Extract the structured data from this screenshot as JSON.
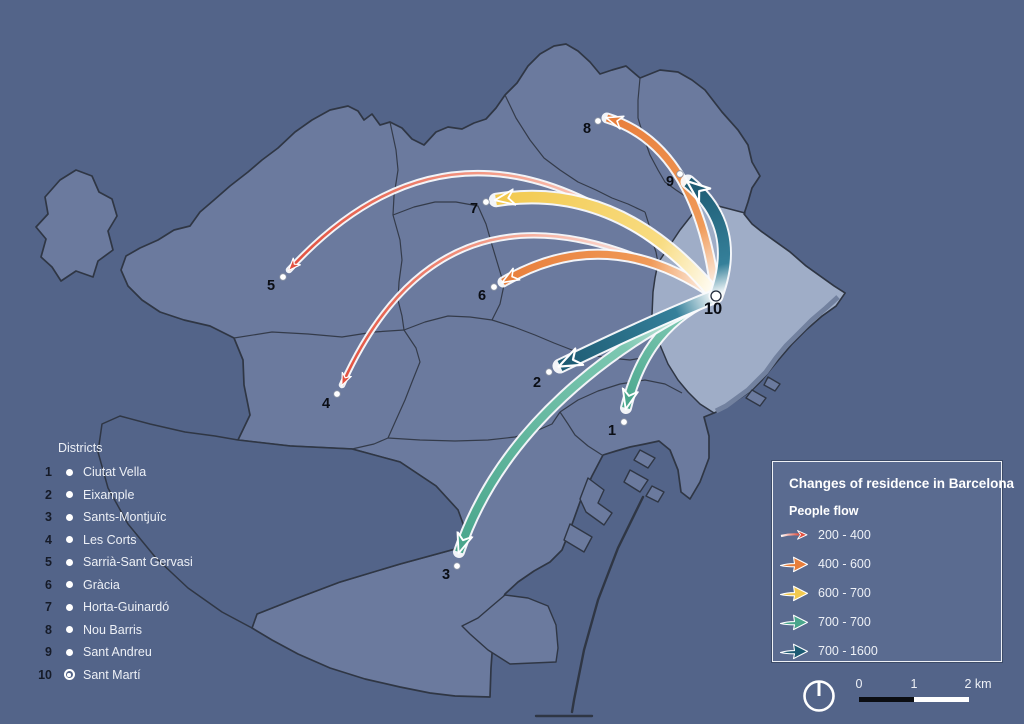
{
  "map": {
    "origin_district": "10",
    "flows": [
      {
        "to": "5",
        "range": "200 - 400"
      },
      {
        "to": "4",
        "range": "200 - 400"
      },
      {
        "to": "8",
        "range": "400 - 600"
      },
      {
        "to": "6",
        "range": "400 - 600"
      },
      {
        "to": "7",
        "range": "600 - 700"
      },
      {
        "to": "1",
        "range": "700 - 700"
      },
      {
        "to": "3",
        "range": "700 - 700"
      },
      {
        "to": "2",
        "range": "700 - 1600"
      },
      {
        "to": "9",
        "range": "700 - 1600"
      }
    ]
  },
  "districts_panel": {
    "title": "Districts",
    "items": [
      {
        "num": "1",
        "name": "Ciutat Vella",
        "marker": "dot"
      },
      {
        "num": "2",
        "name": "Eixample",
        "marker": "dot"
      },
      {
        "num": "3",
        "name": "Sants-Montjuïc",
        "marker": "dot"
      },
      {
        "num": "4",
        "name": "Les Corts",
        "marker": "dot"
      },
      {
        "num": "5",
        "name": "Sarrià-Sant Gervasi",
        "marker": "dot"
      },
      {
        "num": "6",
        "name": "Gràcia",
        "marker": "dot"
      },
      {
        "num": "7",
        "name": "Horta-Guinardó",
        "marker": "dot"
      },
      {
        "num": "8",
        "name": "Nou Barris",
        "marker": "dot"
      },
      {
        "num": "9",
        "name": "Sant Andreu",
        "marker": "dot"
      },
      {
        "num": "10",
        "name": "Sant Martí",
        "marker": "ring-dot"
      }
    ]
  },
  "legend": {
    "title": "Changes of residence in Barcelona",
    "subtitle": "People flow",
    "items": [
      {
        "label": "200 - 400",
        "color": "#e2503f",
        "style": "thin-gradient"
      },
      {
        "label": "400 - 600",
        "color": "#e87e3b",
        "style": "solid"
      },
      {
        "label": "600 - 700",
        "color": "#f2c94f",
        "style": "solid"
      },
      {
        "label": "700 - 700",
        "color": "#4aa68c",
        "style": "solid"
      },
      {
        "label": "700 - 1600",
        "color": "#1d5b73",
        "style": "solid"
      }
    ]
  },
  "scale_bar": {
    "labels": [
      "0",
      "1",
      "2 km"
    ]
  },
  "colors": {
    "sea": "#536489",
    "district_fill": "#6b7a9e",
    "district_highlight": "#9fadc7",
    "boundary": "#2f3644",
    "arrow_casing": "#fafbfd"
  }
}
